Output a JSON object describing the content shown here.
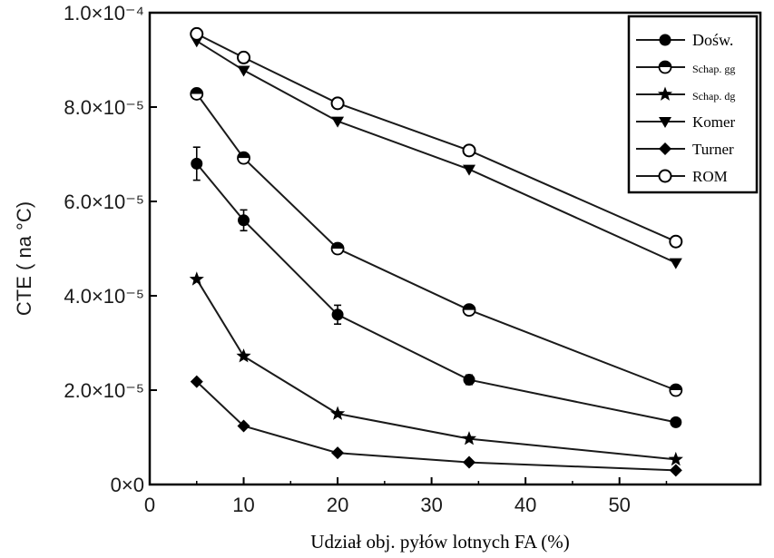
{
  "chart_data": {
    "type": "line",
    "title": "",
    "xlabel": "Udział obj. pyłów lotnych FA (%)",
    "ylabel": "CTE ( na °C)",
    "xlim": [
      0,
      65
    ],
    "ylim": [
      0,
      0.0001
    ],
    "x_ticks": [
      0,
      10,
      20,
      30,
      40,
      50
    ],
    "x_tick_labels": [
      "0",
      "10",
      "20",
      "30",
      "40",
      "50"
    ],
    "y_ticks": [
      0,
      2e-05,
      4e-05,
      6e-05,
      8e-05,
      0.0001
    ],
    "y_tick_labels": [
      "0×0",
      "2.0×10⁻⁵",
      "4.0×10⁻⁵",
      "6.0×10⁻⁵",
      "8.0×10⁻⁵",
      "1.0×10⁻⁴"
    ],
    "grid": false,
    "legend_position": "top-right",
    "x": [
      5,
      10,
      20,
      34,
      56
    ],
    "series": [
      {
        "name": "Dośw.",
        "marker": "filled-circle",
        "values": [
          6.8e-05,
          5.6e-05,
          3.6e-05,
          2.22e-05,
          1.32e-05
        ],
        "error": [
          3.5e-06,
          2.2e-06,
          2e-06,
          1e-06,
          5e-07
        ]
      },
      {
        "name": "Schap. gg",
        "marker": "half-circle",
        "values": [
          8.28e-05,
          6.92e-05,
          5e-05,
          3.7e-05,
          2e-05
        ]
      },
      {
        "name": "Schap. dg",
        "marker": "star",
        "values": [
          4.35e-05,
          2.72e-05,
          1.5e-05,
          9.7e-06,
          5.3e-06
        ]
      },
      {
        "name": "Komer",
        "marker": "down-triangle",
        "values": [
          9.4e-05,
          8.78e-05,
          7.7e-05,
          6.68e-05,
          4.7e-05
        ]
      },
      {
        "name": "Turner",
        "marker": "diamond",
        "values": [
          2.18e-05,
          1.24e-05,
          6.7e-06,
          4.7e-06,
          3e-06
        ]
      },
      {
        "name": "ROM",
        "marker": "open-circle",
        "values": [
          9.55e-05,
          9.05e-05,
          8.08e-05,
          7.08e-05,
          5.15e-05
        ]
      }
    ]
  }
}
